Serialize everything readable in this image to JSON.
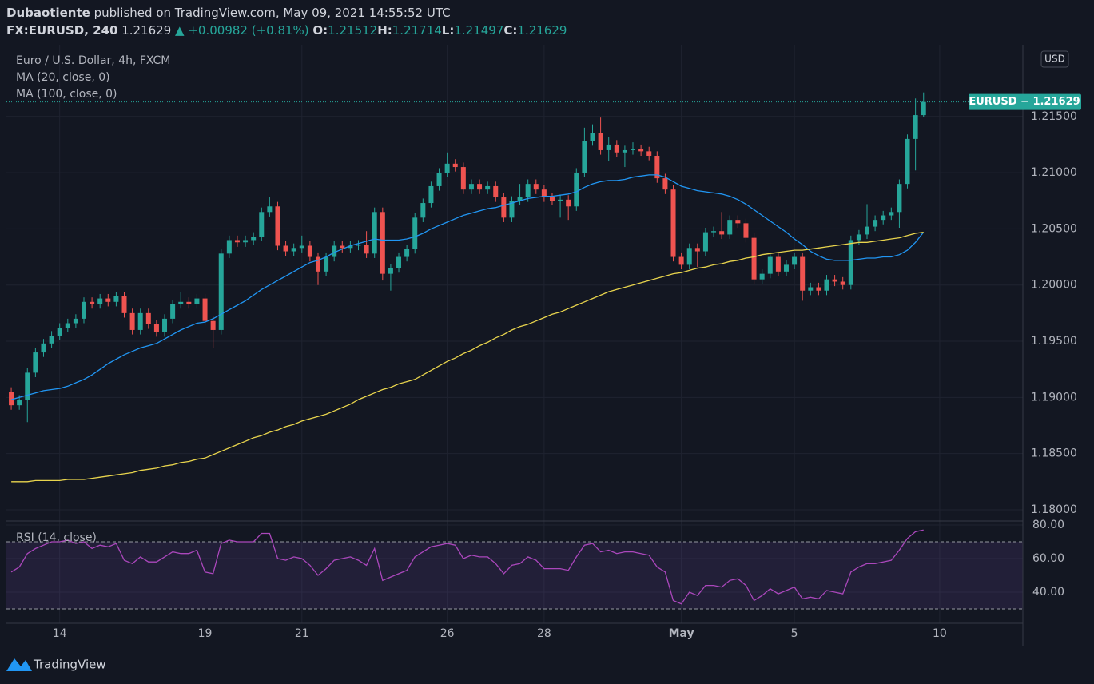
{
  "header": {
    "author": "Dubaotiente",
    "published": "published on TradingView.com, May 09, 2021 14:55:52 UTC",
    "symbol": "FX:EURUSD, 240",
    "last": "1.21629",
    "change": "▲ +0.00982 (+0.81%)",
    "ohlc": [
      {
        "label": "O:",
        "value": "1.21512"
      },
      {
        "label": "H:",
        "value": "1.21714"
      },
      {
        "label": "L:",
        "value": "1.21497"
      },
      {
        "label": "C:",
        "value": "1.21629"
      }
    ]
  },
  "footer": {
    "logo": "TradingView"
  },
  "chart_data": {
    "type": "candlestick",
    "title": "Euro / U.S. Dollar, 4h, FXCM",
    "currency": "USD",
    "price_tag": "EURUSD − 1.21629",
    "up_color": "#26a69a",
    "down_color": "#ef5350",
    "grid": true,
    "ylim": [
      1.179,
      1.2211
    ],
    "yticks": [
      {
        "value": 1.18,
        "label": "1.18000"
      },
      {
        "value": 1.185,
        "label": "1.18500"
      },
      {
        "value": 1.19,
        "label": "1.19000"
      },
      {
        "value": 1.195,
        "label": "1.19500"
      },
      {
        "value": 1.2,
        "label": "1.20000"
      },
      {
        "value": 1.205,
        "label": "1.20500"
      },
      {
        "value": 1.21,
        "label": "1.21000"
      },
      {
        "value": 1.215,
        "label": "1.21500"
      }
    ],
    "xlim": [
      -0.6,
      125.3
    ],
    "xticks": [
      {
        "value": 6,
        "label": "14"
      },
      {
        "value": 24,
        "label": "19"
      },
      {
        "value": 36,
        "label": "21"
      },
      {
        "value": 54,
        "label": "26"
      },
      {
        "value": 66,
        "label": "28"
      },
      {
        "value": 83,
        "label": "May"
      },
      {
        "value": 97,
        "label": "5"
      },
      {
        "value": 115,
        "label": "10"
      }
    ],
    "open": [
      1.1905,
      1.1893,
      1.1898,
      1.1922,
      1.194,
      1.1948,
      1.1955,
      1.1962,
      1.1966,
      1.197,
      1.1985,
      1.1983,
      1.1988,
      1.1985,
      1.199,
      1.1975,
      1.196,
      1.1975,
      1.1965,
      1.1958,
      1.197,
      1.1983,
      1.1985,
      1.1983,
      1.1988,
      1.1968,
      1.196,
      1.2028,
      1.204,
      1.2038,
      1.204,
      1.2043,
      1.2065,
      1.207,
      1.2035,
      1.203,
      1.2033,
      1.2035,
      1.2025,
      1.2012,
      1.2025,
      1.2035,
      1.2033,
      1.2035,
      1.2036,
      1.2028,
      1.2065,
      1.201,
      1.2015,
      1.2025,
      1.2032,
      1.206,
      1.2073,
      1.2088,
      1.21,
      1.2108,
      1.2105,
      1.2085,
      1.209,
      1.2085,
      1.2088,
      1.2078,
      1.206,
      1.2075,
      1.2078,
      1.209,
      1.2085,
      1.2078,
      1.2075,
      1.2076,
      1.207,
      1.21,
      1.2128,
      1.2135,
      1.212,
      1.2125,
      1.2118,
      1.212,
      1.2121,
      1.2119,
      1.2115,
      1.2095,
      1.2085,
      1.2025,
      1.2018,
      1.2033,
      1.203,
      1.2047,
      1.2048,
      1.2045,
      1.2058,
      1.2055,
      1.2042,
      1.2005,
      1.201,
      1.2025,
      1.2012,
      1.2018,
      1.2025,
      1.1995,
      1.1998,
      1.1995,
      1.2005,
      1.2003,
      1.2,
      1.204,
      1.2045,
      1.2052,
      1.2058,
      1.2062,
      1.2065,
      1.209,
      1.213,
      1.21512
    ],
    "high": [
      1.1909,
      1.1902,
      1.1926,
      1.1944,
      1.1952,
      1.1959,
      1.1966,
      1.197,
      1.1974,
      1.1989,
      1.1989,
      1.1992,
      1.1992,
      1.1994,
      1.1994,
      1.1979,
      1.1979,
      1.1979,
      1.1969,
      1.1974,
      1.1987,
      1.1994,
      1.1989,
      1.1992,
      1.1992,
      1.1972,
      1.2032,
      1.2044,
      1.2044,
      1.2044,
      1.2047,
      1.2069,
      1.2078,
      1.2074,
      1.2039,
      1.2037,
      1.2044,
      1.2039,
      1.2029,
      1.2029,
      1.2039,
      1.2039,
      1.2039,
      1.204,
      1.2048,
      1.2069,
      1.2069,
      1.2019,
      1.2029,
      1.2036,
      1.2064,
      1.2077,
      1.2092,
      1.2104,
      1.2118,
      1.2112,
      1.2109,
      1.2094,
      1.2094,
      1.2092,
      1.2092,
      1.2082,
      1.2079,
      1.209,
      1.2094,
      1.2094,
      1.2089,
      1.2082,
      1.208,
      1.208,
      1.2104,
      1.214,
      1.2143,
      1.2149,
      1.2132,
      1.2129,
      1.2124,
      1.2127,
      1.2125,
      1.2123,
      1.2119,
      1.2099,
      1.2089,
      1.2029,
      1.2037,
      1.2037,
      1.2051,
      1.2052,
      1.2065,
      1.2062,
      1.2062,
      1.2059,
      1.2046,
      1.2014,
      1.2029,
      1.2029,
      1.2022,
      1.2029,
      1.2029,
      1.2002,
      1.2002,
      1.2009,
      1.2009,
      1.2007,
      1.2044,
      1.2049,
      1.2072,
      1.2062,
      1.2066,
      1.2069,
      1.2094,
      1.2134,
      1.2166,
      1.21714
    ],
    "low": [
      1.1889,
      1.1889,
      1.1878,
      1.1918,
      1.1936,
      1.1944,
      1.1951,
      1.1958,
      1.1962,
      1.1966,
      1.1979,
      1.1979,
      1.1981,
      1.1981,
      1.1971,
      1.1956,
      1.1956,
      1.1961,
      1.1954,
      1.1954,
      1.1966,
      1.1979,
      1.1979,
      1.1979,
      1.1964,
      1.1944,
      1.1956,
      1.2024,
      1.2034,
      1.2034,
      1.2036,
      1.2039,
      1.2061,
      1.2031,
      1.2026,
      1.2026,
      1.2029,
      1.2021,
      1.2,
      1.2008,
      1.2021,
      1.2029,
      1.2029,
      1.2031,
      1.2024,
      1.2024,
      1.2004,
      1.1995,
      1.2011,
      1.2021,
      1.2028,
      1.2056,
      1.2069,
      1.2084,
      1.2096,
      1.2101,
      1.2081,
      1.2081,
      1.2081,
      1.2081,
      1.2074,
      1.2056,
      1.2056,
      1.2071,
      1.2074,
      1.2081,
      1.2074,
      1.2071,
      1.206,
      1.2058,
      1.2066,
      1.2096,
      1.2124,
      1.2116,
      1.211,
      1.2114,
      1.2105,
      1.2116,
      1.2115,
      1.2111,
      1.2091,
      1.2081,
      1.2021,
      1.2014,
      1.2014,
      1.2016,
      1.2026,
      1.2043,
      1.2041,
      1.2041,
      1.2051,
      1.2038,
      1.2001,
      1.2001,
      1.2006,
      1.2008,
      1.2008,
      1.2014,
      1.1986,
      1.1991,
      1.1991,
      1.1991,
      1.1999,
      1.1996,
      1.1996,
      1.2036,
      1.2041,
      1.2048,
      1.2054,
      1.2058,
      1.2051,
      1.2086,
      1.2102,
      1.21497
    ],
    "close": [
      1.1893,
      1.1898,
      1.1922,
      1.194,
      1.1948,
      1.1955,
      1.1962,
      1.1966,
      1.197,
      1.1985,
      1.1983,
      1.1988,
      1.1985,
      1.199,
      1.1975,
      1.196,
      1.1975,
      1.1965,
      1.1958,
      1.197,
      1.1983,
      1.1985,
      1.1983,
      1.1988,
      1.1968,
      1.196,
      1.2028,
      1.204,
      1.2038,
      1.204,
      1.2043,
      1.2065,
      1.207,
      1.2035,
      1.203,
      1.2033,
      1.2035,
      1.2025,
      1.2012,
      1.2025,
      1.2035,
      1.2033,
      1.2035,
      1.2036,
      1.2028,
      1.2065,
      1.201,
      1.2015,
      1.2025,
      1.2032,
      1.206,
      1.2073,
      1.2088,
      1.21,
      1.2108,
      1.2105,
      1.2085,
      1.209,
      1.2085,
      1.2088,
      1.2078,
      1.206,
      1.2075,
      1.2078,
      1.209,
      1.2085,
      1.2078,
      1.2075,
      1.2076,
      1.207,
      1.21,
      1.2128,
      1.2135,
      1.212,
      1.2125,
      1.2118,
      1.212,
      1.2121,
      1.2119,
      1.2115,
      1.2095,
      1.2085,
      1.2025,
      1.2018,
      1.2033,
      1.203,
      1.2047,
      1.2048,
      1.2045,
      1.2058,
      1.2055,
      1.2042,
      1.2005,
      1.201,
      1.2025,
      1.2012,
      1.2018,
      1.2025,
      1.1995,
      1.1998,
      1.1995,
      1.2005,
      1.2003,
      1.2,
      1.204,
      1.2045,
      1.2052,
      1.2058,
      1.2062,
      1.2065,
      1.209,
      1.213,
      1.21512,
      1.21629
    ],
    "overlays": [
      {
        "name": "MA (20, close, 0)",
        "color": "#2196f3",
        "values": [
          1.1898,
          1.19,
          1.1902,
          1.1904,
          1.1906,
          1.1907,
          1.1908,
          1.191,
          1.1913,
          1.1916,
          1.192,
          1.1925,
          1.193,
          1.1934,
          1.1938,
          1.1941,
          1.1944,
          1.1946,
          1.1948,
          1.1952,
          1.1956,
          1.196,
          1.1963,
          1.1966,
          1.1967,
          1.197,
          1.1974,
          1.1978,
          1.1982,
          1.1986,
          1.1991,
          1.1996,
          1.2,
          1.2004,
          1.2008,
          1.2012,
          1.2016,
          1.202,
          1.2022,
          1.2025,
          1.2029,
          1.2032,
          1.2035,
          1.2037,
          1.2039,
          1.2041,
          1.204,
          1.204,
          1.204,
          1.2041,
          1.2043,
          1.2046,
          1.205,
          1.2053,
          1.2056,
          1.2059,
          1.2062,
          1.2064,
          1.2066,
          1.2068,
          1.2069,
          1.2071,
          1.2073,
          1.2075,
          1.2077,
          1.2078,
          1.2079,
          1.2079,
          1.208,
          1.2081,
          1.2083,
          1.2087,
          1.209,
          1.2092,
          1.2093,
          1.2093,
          1.2094,
          1.2096,
          1.2097,
          1.2098,
          1.2098,
          1.2096,
          1.2092,
          1.2088,
          1.2086,
          1.2084,
          1.2083,
          1.2082,
          1.2081,
          1.2079,
          1.2076,
          1.2072,
          1.2067,
          1.2062,
          1.2057,
          1.2052,
          1.2047,
          1.2041,
          1.2036,
          1.203,
          1.2026,
          1.2023,
          1.2022,
          1.2022,
          1.2022,
          1.2023,
          1.2024,
          1.2024,
          1.2025,
          1.2025,
          1.2027,
          1.2031,
          1.2038,
          1.2047
        ]
      },
      {
        "name": "MA (100, close, 0)",
        "color": "#e8d44d",
        "values": [
          1.1825,
          1.1825,
          1.1825,
          1.1826,
          1.1826,
          1.1826,
          1.1826,
          1.1827,
          1.1827,
          1.1827,
          1.1828,
          1.1829,
          1.183,
          1.1831,
          1.1832,
          1.1833,
          1.1835,
          1.1836,
          1.1837,
          1.1839,
          1.184,
          1.1842,
          1.1843,
          1.1845,
          1.1846,
          1.1849,
          1.1852,
          1.1855,
          1.1858,
          1.1861,
          1.1864,
          1.1866,
          1.1869,
          1.1871,
          1.1874,
          1.1876,
          1.1879,
          1.1881,
          1.1883,
          1.1885,
          1.1888,
          1.1891,
          1.1894,
          1.1898,
          1.1901,
          1.1904,
          1.1907,
          1.1909,
          1.1912,
          1.1914,
          1.1916,
          1.192,
          1.1924,
          1.1928,
          1.1932,
          1.1935,
          1.1939,
          1.1942,
          1.1946,
          1.1949,
          1.1953,
          1.1956,
          1.196,
          1.1963,
          1.1965,
          1.1968,
          1.1971,
          1.1974,
          1.1976,
          1.1979,
          1.1982,
          1.1985,
          1.1988,
          1.1991,
          1.1994,
          1.1996,
          1.1998,
          1.2,
          1.2002,
          1.2004,
          1.2006,
          1.2008,
          1.201,
          1.2011,
          1.2013,
          1.2015,
          1.2016,
          1.2018,
          1.2019,
          1.2021,
          1.2022,
          1.2024,
          1.2025,
          1.2027,
          1.2028,
          1.2029,
          1.203,
          1.2031,
          1.2031,
          1.2032,
          1.2033,
          1.2034,
          1.2035,
          1.2036,
          1.2037,
          1.2038,
          1.2038,
          1.2039,
          1.204,
          1.2041,
          1.2042,
          1.2044,
          1.2046,
          1.2047
        ]
      }
    ],
    "rsi": {
      "name": "RSI (14, close)",
      "color": "#ab47bc",
      "ylim": [
        21.4,
        82.4
      ],
      "levels": [
        70,
        30
      ],
      "yticks": [
        {
          "value": 80,
          "label": "80.00"
        },
        {
          "value": 60,
          "label": "60.00"
        },
        {
          "value": 40,
          "label": "40.00"
        }
      ],
      "values": [
        52,
        55,
        63,
        66,
        68,
        70,
        70,
        71,
        69,
        70,
        66,
        68,
        67,
        69,
        59,
        57,
        61,
        58,
        58,
        61,
        64,
        63,
        63,
        65,
        52,
        51,
        69,
        71,
        70,
        70,
        70,
        75,
        75,
        60,
        59,
        61,
        60,
        56,
        50,
        54,
        59,
        60,
        61,
        59,
        56,
        66,
        47,
        49,
        51,
        53,
        61,
        64,
        67,
        68,
        69,
        68,
        60,
        62,
        61,
        61,
        57,
        51,
        56,
        57,
        61,
        59,
        54,
        54,
        54,
        53,
        61,
        68,
        69,
        64,
        65,
        63,
        64,
        64,
        63,
        62,
        55,
        52,
        35,
        33,
        40,
        38,
        44,
        44,
        43,
        47,
        48,
        44,
        35,
        38,
        42,
        39,
        41,
        43,
        36,
        37,
        36,
        41,
        40,
        39,
        52,
        55,
        57,
        57,
        58,
        59,
        65,
        72,
        76,
        77
      ]
    }
  }
}
